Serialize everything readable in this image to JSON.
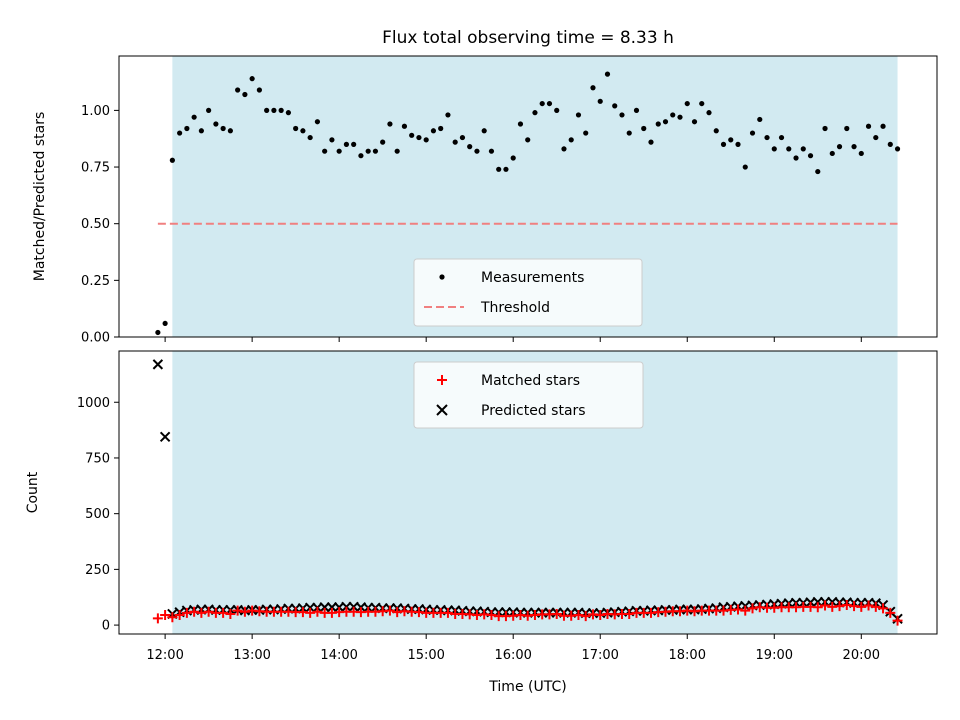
{
  "chart_data": [
    {
      "type": "scatter",
      "title": "Flux total observing time = 8.33 h",
      "xlabel": "",
      "ylabel": "Matched/Predicted stars",
      "xlim_hours": [
        11.47,
        20.87
      ],
      "ylim": [
        0,
        1.24
      ],
      "yticks": [
        0,
        0.25,
        0.5,
        0.75,
        1.0
      ],
      "ytick_labels": [
        "0.00",
        "0.25",
        "0.50",
        "0.75",
        "1.00"
      ],
      "grid": false,
      "observing_window": {
        "start": "12:05",
        "end": "20:25",
        "color": "#add8e6"
      },
      "legend": {
        "location": "lower center",
        "entries": [
          {
            "label": "Measurements",
            "marker": "dot",
            "color": "#000000"
          },
          {
            "label": "Threshold",
            "marker": "dashed-line",
            "color": "#f08080"
          }
        ]
      },
      "threshold": {
        "value": 0.5,
        "x_start": "11:55",
        "x_end": "20:25",
        "color": "#f08080"
      },
      "series": [
        {
          "name": "Measurements",
          "color": "#000000",
          "x": [
            "11:55",
            "12:00",
            "12:05",
            "12:10",
            "12:15",
            "12:20",
            "12:25",
            "12:30",
            "12:35",
            "12:40",
            "12:45",
            "12:50",
            "12:55",
            "13:00",
            "13:05",
            "13:10",
            "13:15",
            "13:20",
            "13:25",
            "13:30",
            "13:35",
            "13:40",
            "13:45",
            "13:50",
            "13:55",
            "14:00",
            "14:05",
            "14:10",
            "14:15",
            "14:20",
            "14:25",
            "14:30",
            "14:35",
            "14:40",
            "14:45",
            "14:50",
            "14:55",
            "15:00",
            "15:05",
            "15:10",
            "15:15",
            "15:20",
            "15:25",
            "15:30",
            "15:35",
            "15:40",
            "15:45",
            "15:50",
            "15:55",
            "16:00",
            "16:05",
            "16:10",
            "16:15",
            "16:20",
            "16:25",
            "16:30",
            "16:35",
            "16:40",
            "16:45",
            "16:50",
            "16:55",
            "17:00",
            "17:05",
            "17:10",
            "17:15",
            "17:20",
            "17:25",
            "17:30",
            "17:35",
            "17:40",
            "17:45",
            "17:50",
            "17:55",
            "18:00",
            "18:05",
            "18:10",
            "18:15",
            "18:20",
            "18:25",
            "18:30",
            "18:35",
            "18:40",
            "18:45",
            "18:50",
            "18:55",
            "19:00",
            "19:05",
            "19:10",
            "19:15",
            "19:20",
            "19:25",
            "19:30",
            "19:35",
            "19:40",
            "19:45",
            "19:50",
            "19:55",
            "20:00",
            "20:05",
            "20:10",
            "20:15",
            "20:20",
            "20:25"
          ],
          "y": [
            0.02,
            0.06,
            0.78,
            0.9,
            0.92,
            0.97,
            0.91,
            1.0,
            0.94,
            0.92,
            0.91,
            1.09,
            1.07,
            1.14,
            1.09,
            1.0,
            1.0,
            1.0,
            0.99,
            0.92,
            0.91,
            0.88,
            0.95,
            0.82,
            0.87,
            0.82,
            0.85,
            0.85,
            0.8,
            0.82,
            0.82,
            0.86,
            0.94,
            0.82,
            0.93,
            0.89,
            0.88,
            0.87,
            0.91,
            0.92,
            0.98,
            0.86,
            0.88,
            0.84,
            0.82,
            0.91,
            0.82,
            0.74,
            0.74,
            0.79,
            0.94,
            0.87,
            0.99,
            1.03,
            1.03,
            1.0,
            0.83,
            0.87,
            0.98,
            0.9,
            1.1,
            1.04,
            1.16,
            1.02,
            0.98,
            0.9,
            1.0,
            0.92,
            0.86,
            0.94,
            0.95,
            0.98,
            0.97,
            1.03,
            0.95,
            1.03,
            0.99,
            0.91,
            0.85,
            0.87,
            0.85,
            0.75,
            0.9,
            0.96,
            0.88,
            0.83,
            0.88,
            0.83,
            0.79,
            0.83,
            0.8,
            0.73,
            0.92,
            0.81,
            0.84,
            0.92,
            0.84,
            0.81,
            0.93,
            0.88,
            0.93,
            0.85,
            0.83
          ]
        }
      ]
    },
    {
      "type": "scatter",
      "title": "",
      "xlabel": "Time (UTC)",
      "ylabel": "Count",
      "xlim_hours": [
        11.47,
        20.87
      ],
      "ylim": [
        -40,
        1230
      ],
      "yticks": [
        0,
        250,
        500,
        750,
        1000
      ],
      "ytick_labels": [
        "0",
        "250",
        "500",
        "750",
        "1000"
      ],
      "xtick_labels": [
        "12:00",
        "13:00",
        "14:00",
        "15:00",
        "16:00",
        "17:00",
        "18:00",
        "19:00",
        "20:00"
      ],
      "grid": false,
      "observing_window": {
        "start": "12:05",
        "end": "20:25",
        "color": "#add8e6"
      },
      "legend": {
        "location": "upper center",
        "entries": [
          {
            "label": "Matched stars",
            "marker": "plus",
            "color": "#ff0000"
          },
          {
            "label": "Predicted stars",
            "marker": "x",
            "color": "#000000"
          }
        ]
      },
      "series": [
        {
          "name": "Matched stars",
          "color": "#ff0000",
          "marker": "plus",
          "x": [
            "11:55",
            "12:00",
            "12:05",
            "12:10",
            "12:15",
            "12:20",
            "12:25",
            "12:30",
            "12:35",
            "12:40",
            "12:45",
            "12:50",
            "12:55",
            "13:00",
            "13:05",
            "13:10",
            "13:15",
            "13:20",
            "13:25",
            "13:30",
            "13:35",
            "13:40",
            "13:45",
            "13:50",
            "13:55",
            "14:00",
            "14:05",
            "14:10",
            "14:15",
            "14:20",
            "14:25",
            "14:30",
            "14:35",
            "14:40",
            "14:45",
            "14:50",
            "14:55",
            "15:00",
            "15:05",
            "15:10",
            "15:15",
            "15:20",
            "15:25",
            "15:30",
            "15:35",
            "15:40",
            "15:45",
            "15:50",
            "15:55",
            "16:00",
            "16:05",
            "16:10",
            "16:15",
            "16:20",
            "16:25",
            "16:30",
            "16:35",
            "16:40",
            "16:45",
            "16:50",
            "16:55",
            "17:00",
            "17:05",
            "17:10",
            "17:15",
            "17:20",
            "17:25",
            "17:30",
            "17:35",
            "17:40",
            "17:45",
            "17:50",
            "17:55",
            "18:00",
            "18:05",
            "18:10",
            "18:15",
            "18:20",
            "18:25",
            "18:30",
            "18:35",
            "18:40",
            "18:45",
            "18:50",
            "18:55",
            "19:00",
            "19:05",
            "19:10",
            "19:15",
            "19:20",
            "19:25",
            "19:30",
            "19:35",
            "19:40",
            "19:45",
            "19:50",
            "19:55",
            "20:00",
            "20:05",
            "20:10",
            "20:15",
            "20:20",
            "20:25"
          ],
          "y": [
            30,
            45,
            35,
            45,
            55,
            60,
            55,
            60,
            55,
            55,
            50,
            65,
            60,
            65,
            62,
            60,
            60,
            60,
            60,
            58,
            58,
            55,
            60,
            55,
            55,
            58,
            60,
            60,
            58,
            60,
            60,
            62,
            65,
            58,
            62,
            60,
            58,
            55,
            55,
            55,
            55,
            50,
            50,
            48,
            45,
            48,
            45,
            40,
            40,
            42,
            45,
            42,
            45,
            48,
            48,
            50,
            42,
            42,
            45,
            40,
            48,
            45,
            50,
            48,
            50,
            50,
            55,
            55,
            55,
            58,
            60,
            62,
            62,
            65,
            62,
            65,
            65,
            65,
            65,
            68,
            70,
            65,
            75,
            80,
            78,
            78,
            80,
            80,
            80,
            82,
            82,
            80,
            88,
            82,
            85,
            90,
            85,
            82,
            88,
            82,
            75,
            55,
            20
          ]
        },
        {
          "name": "Predicted stars",
          "color": "#000000",
          "marker": "x",
          "x": [
            "11:55",
            "12:00",
            "12:05",
            "12:10",
            "12:15",
            "12:20",
            "12:25",
            "12:30",
            "12:35",
            "12:40",
            "12:45",
            "12:50",
            "12:55",
            "13:00",
            "13:05",
            "13:10",
            "13:15",
            "13:20",
            "13:25",
            "13:30",
            "13:35",
            "13:40",
            "13:45",
            "13:50",
            "13:55",
            "14:00",
            "14:05",
            "14:10",
            "14:15",
            "14:20",
            "14:25",
            "14:30",
            "14:35",
            "14:40",
            "14:45",
            "14:50",
            "14:55",
            "15:00",
            "15:05",
            "15:10",
            "15:15",
            "15:20",
            "15:25",
            "15:30",
            "15:35",
            "15:40",
            "15:45",
            "15:50",
            "15:55",
            "16:00",
            "16:05",
            "16:10",
            "16:15",
            "16:20",
            "16:25",
            "16:30",
            "16:35",
            "16:40",
            "16:45",
            "16:50",
            "16:55",
            "17:00",
            "17:05",
            "17:10",
            "17:15",
            "17:20",
            "17:25",
            "17:30",
            "17:35",
            "17:40",
            "17:45",
            "17:50",
            "17:55",
            "18:00",
            "18:05",
            "18:10",
            "18:15",
            "18:20",
            "18:25",
            "18:30",
            "18:35",
            "18:40",
            "18:45",
            "18:50",
            "18:55",
            "19:00",
            "19:05",
            "19:10",
            "19:15",
            "19:20",
            "19:25",
            "19:30",
            "19:35",
            "19:40",
            "19:45",
            "19:50",
            "19:55",
            "20:00",
            "20:05",
            "20:10",
            "20:15",
            "20:20",
            "20:25"
          ],
          "y": [
            1170,
            845,
            50,
            58,
            65,
            68,
            70,
            70,
            68,
            68,
            68,
            68,
            66,
            68,
            68,
            70,
            70,
            72,
            74,
            74,
            76,
            78,
            78,
            80,
            80,
            80,
            82,
            82,
            80,
            78,
            78,
            76,
            76,
            76,
            74,
            72,
            72,
            70,
            68,
            68,
            66,
            66,
            64,
            62,
            62,
            60,
            58,
            58,
            58,
            58,
            56,
            56,
            56,
            56,
            56,
            56,
            56,
            56,
            56,
            54,
            54,
            54,
            56,
            58,
            60,
            62,
            64,
            64,
            66,
            66,
            68,
            68,
            70,
            70,
            70,
            72,
            74,
            76,
            80,
            82,
            84,
            86,
            88,
            90,
            92,
            94,
            96,
            98,
            100,
            100,
            102,
            104,
            104,
            104,
            102,
            102,
            100,
            100,
            100,
            98,
            90,
            60,
            28
          ]
        }
      ]
    }
  ]
}
